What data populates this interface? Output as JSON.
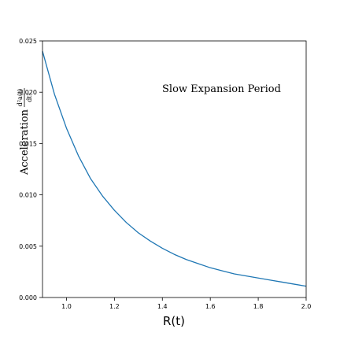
{
  "chart_data": {
    "type": "line",
    "xlabel": "R(t)",
    "ylabel": "Acceleration",
    "ylabel_fraction": {
      "numerator": "d²a(t)",
      "denominator": "dt²"
    },
    "annotation": "Slow Expansion Period",
    "xlim": [
      0.9,
      2.0
    ],
    "ylim": [
      0.0,
      0.025
    ],
    "x_ticks": [
      1.0,
      1.2,
      1.4,
      1.6,
      1.8,
      2.0
    ],
    "x_tick_labels": [
      "1.0",
      "1.2",
      "1.4",
      "1.6",
      "1.8",
      "2.0"
    ],
    "y_ticks": [
      0.0,
      0.005,
      0.01,
      0.015,
      0.02,
      0.025
    ],
    "y_tick_labels": [
      "0.000",
      "0.005",
      "0.010",
      "0.015",
      "0.020",
      "0.025"
    ],
    "grid": false,
    "series": [
      {
        "color": "#1f77b4",
        "x": [
          0.9,
          0.95,
          1.0,
          1.05,
          1.1,
          1.15,
          1.2,
          1.25,
          1.3,
          1.35,
          1.4,
          1.45,
          1.5,
          1.55,
          1.6,
          1.65,
          1.7,
          1.75,
          1.8,
          1.85,
          1.9,
          1.95,
          2.0
        ],
        "y": [
          0.024,
          0.0198,
          0.0165,
          0.0138,
          0.0116,
          0.0099,
          0.0085,
          0.0073,
          0.0063,
          0.0055,
          0.0048,
          0.0042,
          0.0037,
          0.0033,
          0.0029,
          0.0026,
          0.0023,
          0.0021,
          0.0019,
          0.0017,
          0.0015,
          0.0013,
          0.0011
        ]
      }
    ]
  }
}
